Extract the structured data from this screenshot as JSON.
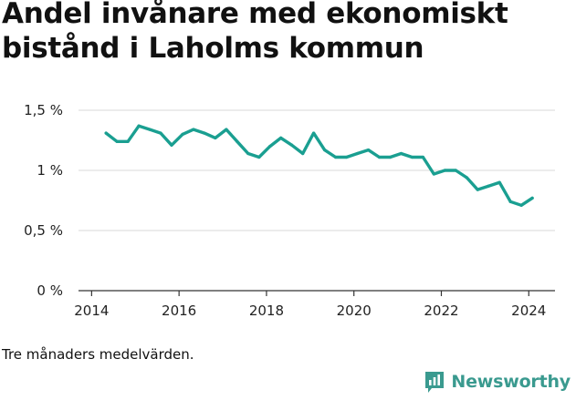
{
  "header": {
    "title": "Andel invånare med ekonomiskt bistånd i Laholms kommun"
  },
  "footer": {
    "note": "Tre månaders medelvärden.",
    "brand_name": "Newsworthy",
    "brand_icon": "bar-chart-speech-icon"
  },
  "colors": {
    "line": "#1a9f91",
    "grid": "#d9d9d9",
    "axis": "#333333",
    "brand": "#3a9a8f"
  },
  "chart_data": {
    "type": "line",
    "title": "Andel invånare med ekonomiskt bistånd i Laholms kommun",
    "xlabel": "",
    "ylabel": "",
    "xlim": [
      2013.7,
      2024.6
    ],
    "ylim": [
      0,
      1.5
    ],
    "grid": "horizontal",
    "x_ticks": [
      2014,
      2016,
      2018,
      2020,
      2022,
      2024
    ],
    "x_tick_labels": [
      "2014",
      "2016",
      "2018",
      "2020",
      "2022",
      "2024"
    ],
    "y_ticks": [
      0,
      0.5,
      1,
      1.5
    ],
    "y_tick_labels": [
      "0 %",
      "0,5 %",
      "1 %",
      "1,5 %"
    ],
    "series": [
      {
        "x": [
          2014.33,
          2014.58,
          2014.83,
          2015.08,
          2015.33,
          2015.58,
          2015.83,
          2016.08,
          2016.33,
          2016.58,
          2016.83,
          2017.08,
          2017.33,
          2017.58,
          2017.83,
          2018.08,
          2018.33,
          2018.58,
          2018.83,
          2019.08,
          2019.33,
          2019.58,
          2019.83,
          2020.08,
          2020.33,
          2020.58,
          2020.83,
          2021.08,
          2021.33,
          2021.58,
          2021.83,
          2022.08,
          2022.33,
          2022.58,
          2022.83,
          2023.08,
          2023.33,
          2023.58,
          2023.83,
          2024.08
        ],
        "values": [
          1.31,
          1.24,
          1.24,
          1.37,
          1.34,
          1.31,
          1.21,
          1.3,
          1.34,
          1.31,
          1.27,
          1.34,
          1.24,
          1.14,
          1.11,
          1.2,
          1.27,
          1.21,
          1.14,
          1.31,
          1.17,
          1.11,
          1.11,
          1.14,
          1.17,
          1.11,
          1.11,
          1.14,
          1.11,
          1.11,
          0.97,
          1.0,
          1.0,
          0.94,
          0.84,
          0.87,
          0.9,
          0.74,
          0.71,
          0.77
        ]
      }
    ]
  }
}
